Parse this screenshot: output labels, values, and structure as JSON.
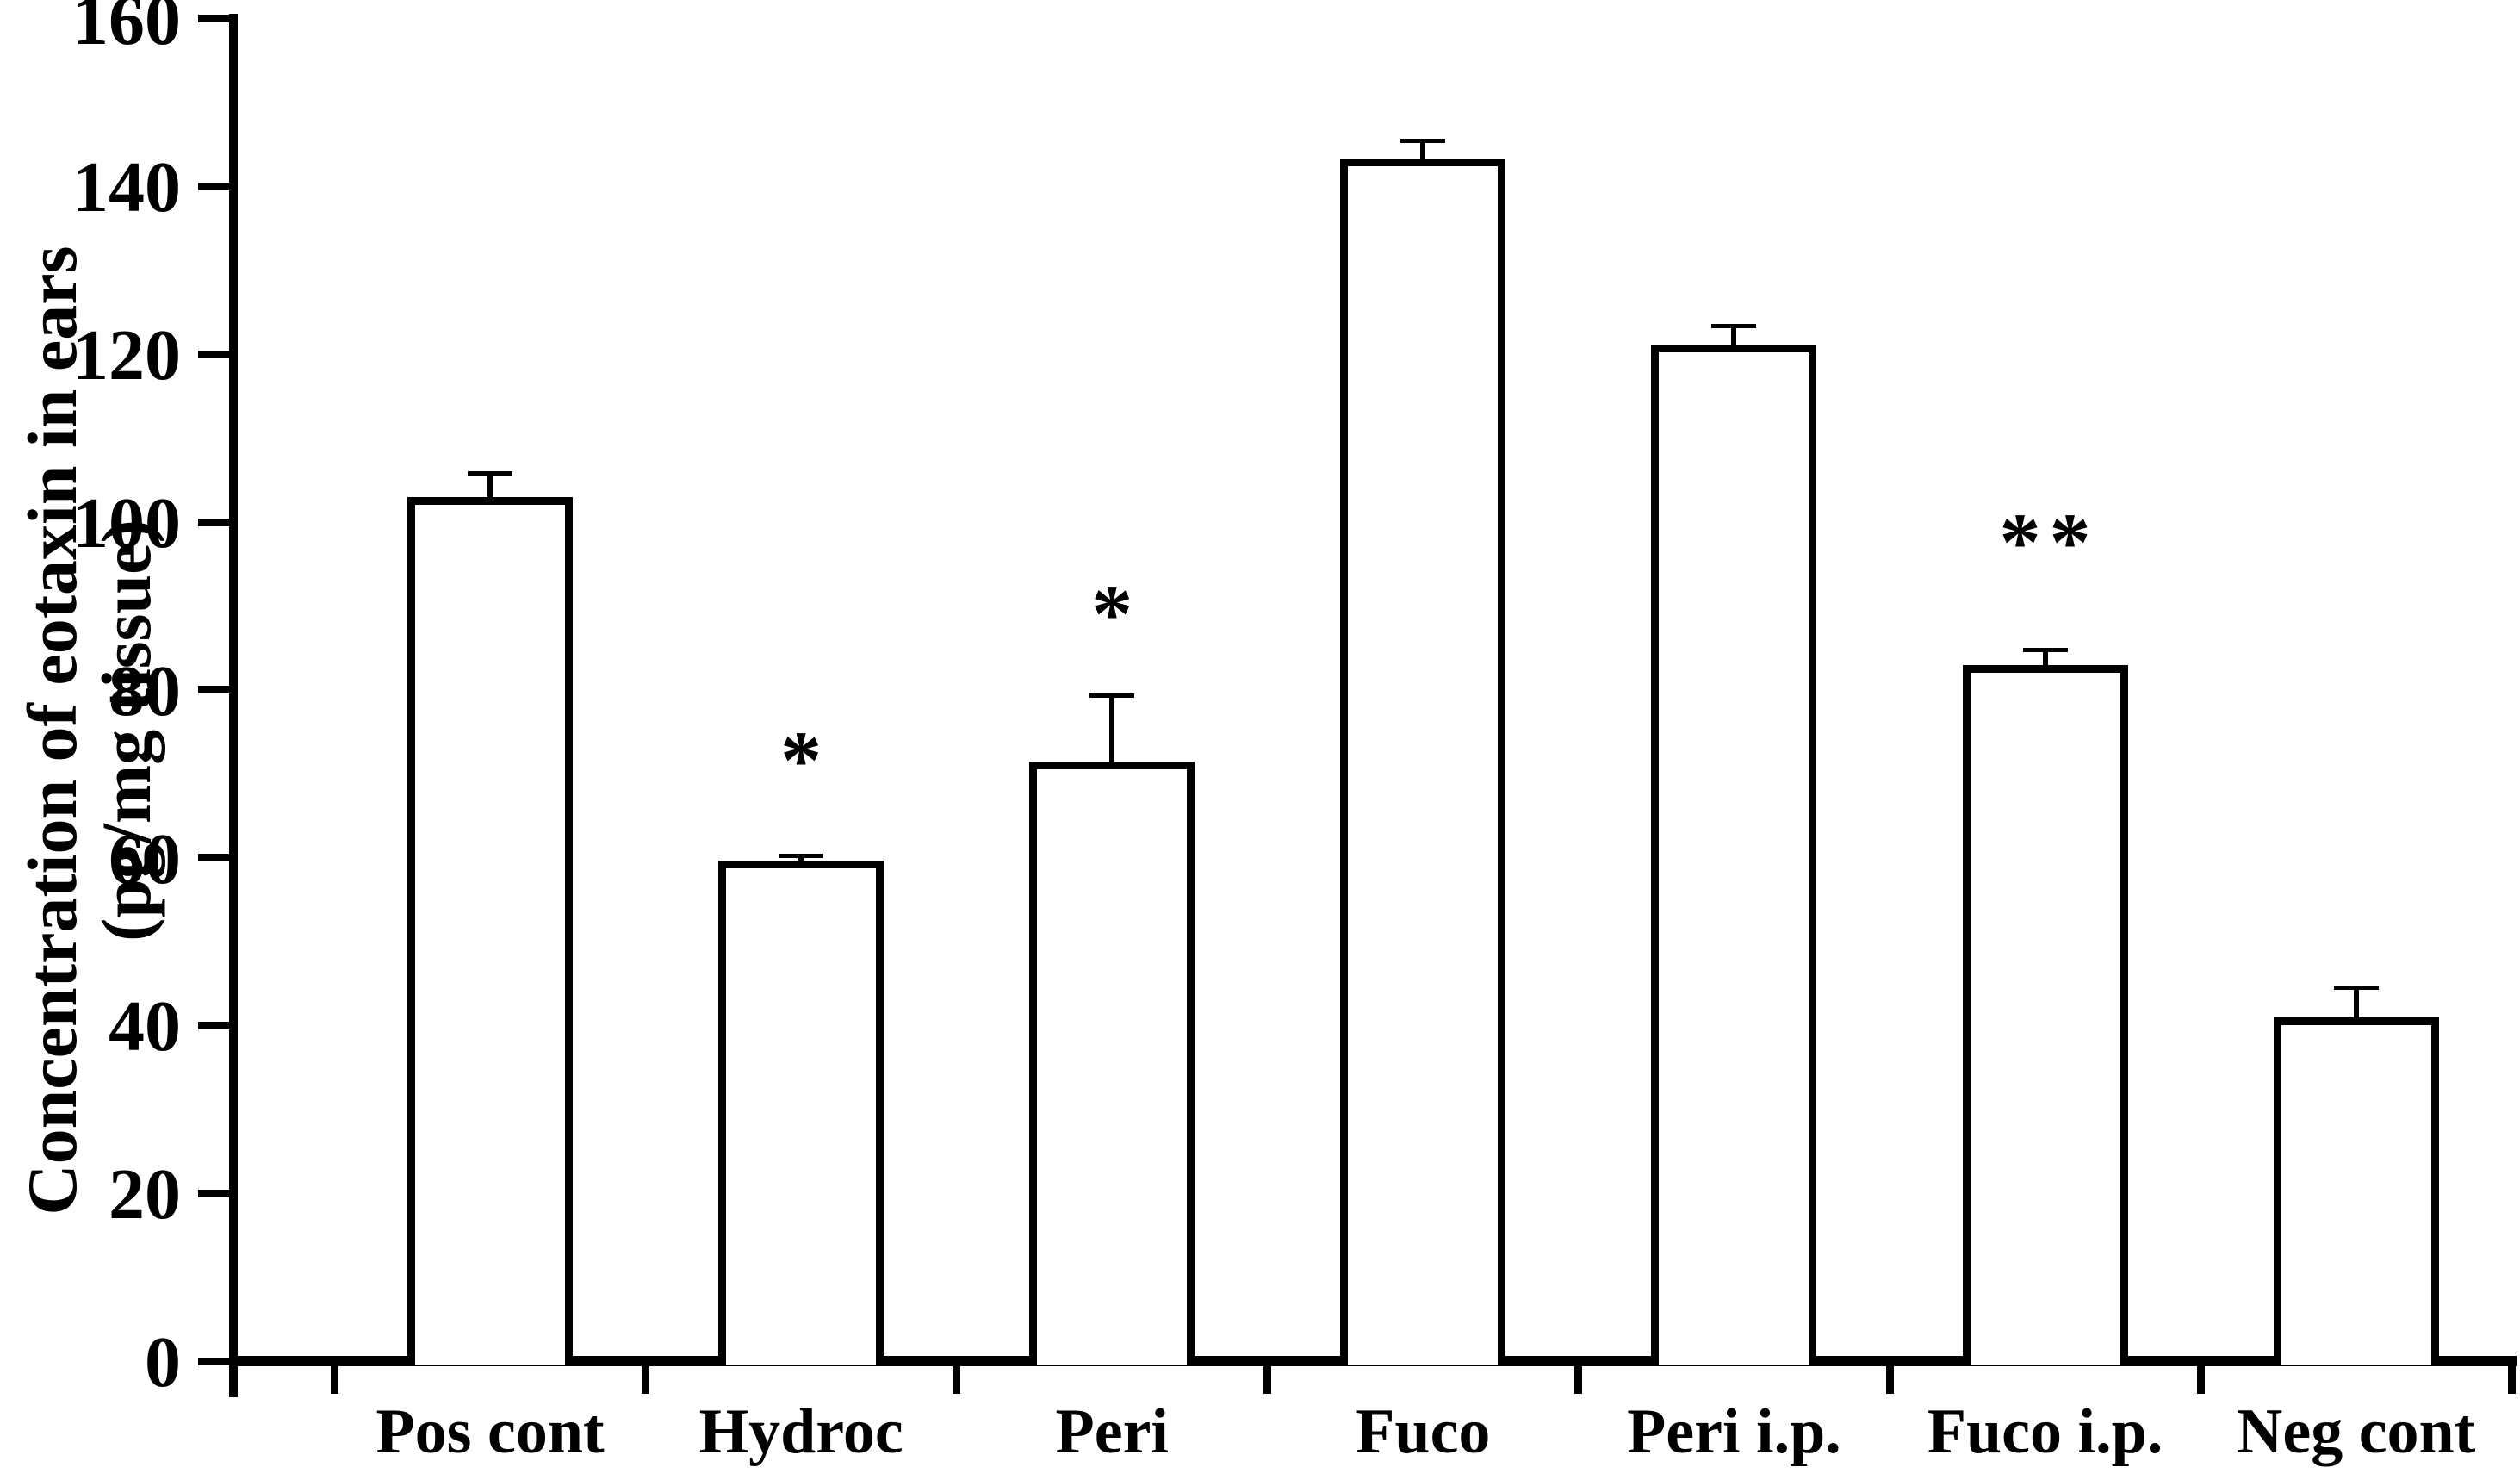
{
  "chart_data": {
    "type": "bar",
    "title": "",
    "xlabel": "",
    "ylabel": "Concentration of eotaxin in ears (pg/mg tissue)",
    "ylabel_line1": "Concentration of eotaxin in ears",
    "ylabel_line2": "(pg/mg tissue)",
    "categories": [
      "Pos cont",
      "Hydroc",
      "Peri",
      "Fuco",
      "Peri i.p.",
      "Fuco i.p.",
      "Neg cont"
    ],
    "values": [
      103.0,
      59.7,
      71.5,
      143.3,
      121.2,
      83.0,
      41.0
    ],
    "error_bars": {
      "direction": "upper",
      "values": [
        3.1,
        0.8,
        8.1,
        2.4,
        2.4,
        2.0,
        3.8
      ]
    },
    "significance_markers": [
      {
        "category": "Hydroc",
        "label": "*",
        "y_center": 73.0
      },
      {
        "category": "Peri",
        "label": "*",
        "y_center": 90.5
      },
      {
        "category": "Fuco i.p.",
        "label": "**",
        "y_center": 99.0
      }
    ],
    "ylim": [
      0,
      160
    ],
    "ytick_interval": 20,
    "yticks": [
      0,
      20,
      40,
      60,
      80,
      100,
      120,
      140,
      160
    ],
    "grid": false,
    "legend": false,
    "bar_fill_color": "#ffffff",
    "bar_border_color": "#000000",
    "axis_color": "#000000",
    "text_color": "#000000",
    "background_color": "#ffffff"
  }
}
